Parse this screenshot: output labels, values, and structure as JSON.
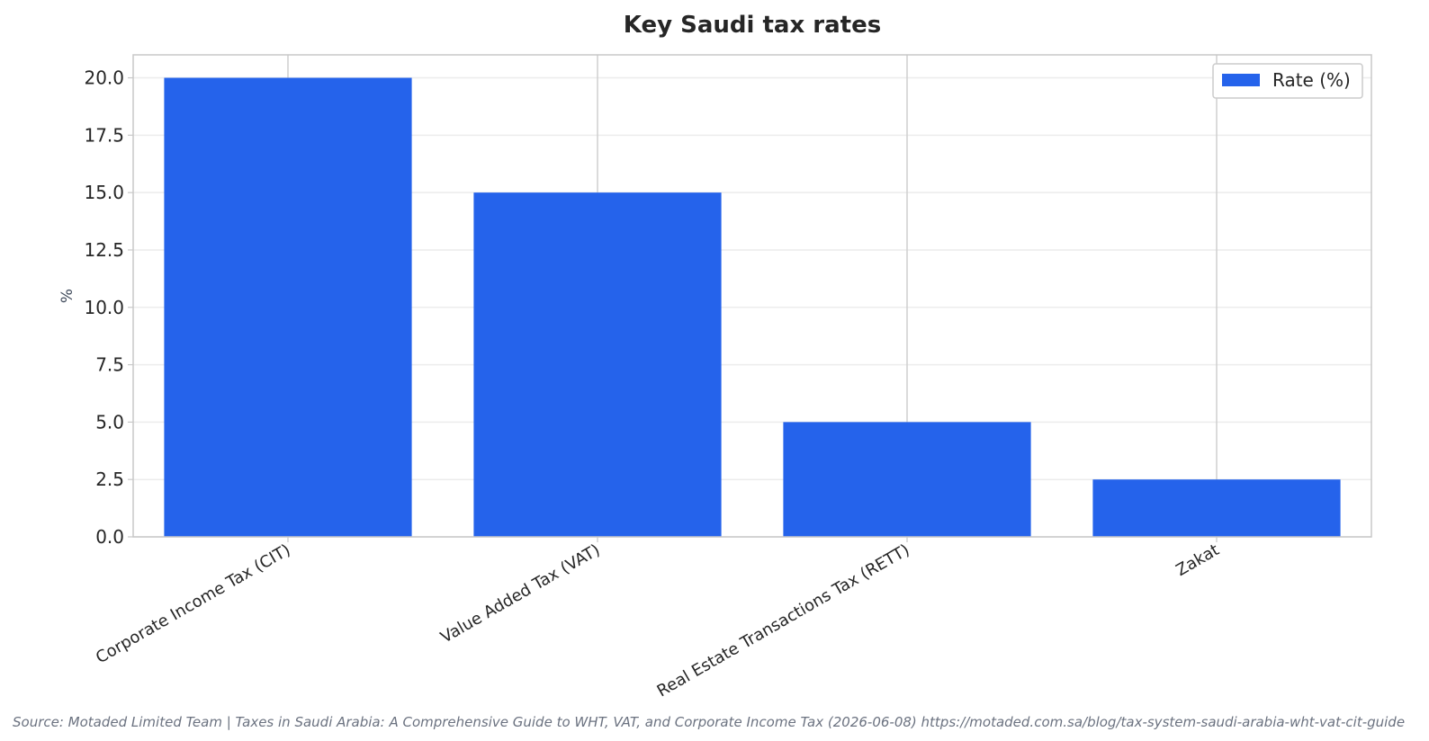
{
  "chart_data": {
    "type": "bar",
    "title": "Key Saudi tax rates",
    "xlabel": "",
    "ylabel": "%",
    "categories": [
      "Corporate Income Tax (CIT)",
      "Value Added Tax (VAT)",
      "Real Estate Transactions Tax (RETT)",
      "Zakat"
    ],
    "series": [
      {
        "name": "Rate (%)",
        "values": [
          20,
          15,
          5,
          2.5
        ],
        "color": "#2563eb"
      }
    ],
    "ylim": [
      0,
      21
    ],
    "yticks": [
      "0.0",
      "2.5",
      "5.0",
      "7.5",
      "10.0",
      "12.5",
      "15.0",
      "17.5",
      "20.0"
    ],
    "grid": true,
    "legend_position": "top-right",
    "source": "Source: Motaded Limited Team | Taxes in Saudi Arabia: A Comprehensive Guide to WHT, VAT, and Corporate Income Tax (2026-06-08) https://motaded.com.sa/blog/tax-system-saudi-arabia-wht-vat-cit-guide"
  }
}
